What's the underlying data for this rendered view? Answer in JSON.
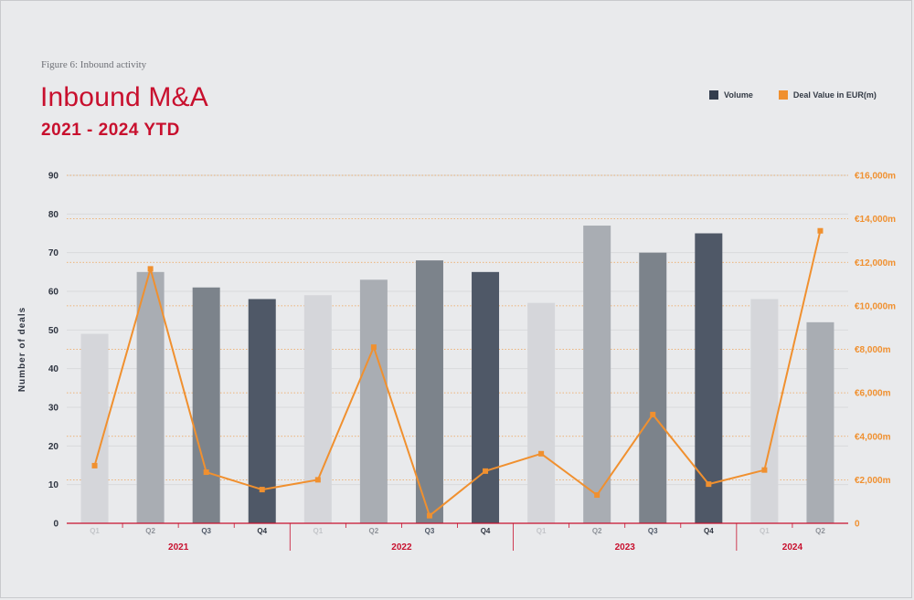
{
  "figure_label": "Figure 6: Inbound activity",
  "title": "Inbound M&A",
  "subtitle": "2021 - 2024 YTD",
  "colors": {
    "accent": "#c8102e",
    "line": "#f0902f",
    "bar_shades": [
      "#d5d6da",
      "#a9adb3",
      "#7c838b",
      "#4f5867"
    ],
    "grid": "#d9dadd"
  },
  "chart_data": {
    "type": "bar",
    "legend": [
      {
        "label": "Volume",
        "color": "#333d4d"
      },
      {
        "label": "Deal Value in EUR(m)",
        "color": "#f0902f"
      }
    ],
    "legend_position": "top-right",
    "ylabel": "Number of deals",
    "ylim": [
      0,
      90
    ],
    "yticks": [
      "0",
      "10",
      "20",
      "30",
      "40",
      "50",
      "60",
      "70",
      "80",
      "90"
    ],
    "y2lim": [
      0,
      16000
    ],
    "y2ticks": [
      "0",
      "€2,000m",
      "€4,000m",
      "€6,000m",
      "€8,000m",
      "€10,000m",
      "€12,000m",
      "€14,000m",
      "€16,000m"
    ],
    "categories": [
      "Q1",
      "Q2",
      "Q3",
      "Q4",
      "Q1",
      "Q2",
      "Q3",
      "Q4",
      "Q1",
      "Q2",
      "Q3",
      "Q4",
      "Q1",
      "Q2"
    ],
    "years": [
      {
        "label": "2021",
        "start": 0,
        "count": 4
      },
      {
        "label": "2022",
        "start": 4,
        "count": 4
      },
      {
        "label": "2023",
        "start": 8,
        "count": 4
      },
      {
        "label": "2024",
        "start": 12,
        "count": 2
      }
    ],
    "series": [
      {
        "name": "Volume",
        "type": "bar",
        "values": [
          49,
          65,
          61,
          58,
          59,
          63,
          68,
          65,
          57,
          77,
          70,
          75,
          58,
          52
        ]
      },
      {
        "name": "Deal Value in EUR(m)",
        "type": "line",
        "axis": "right",
        "values": [
          2650,
          11700,
          2350,
          1550,
          2000,
          8100,
          350,
          2400,
          3200,
          1300,
          5000,
          1800,
          2450,
          13450
        ]
      }
    ],
    "grid": true
  }
}
